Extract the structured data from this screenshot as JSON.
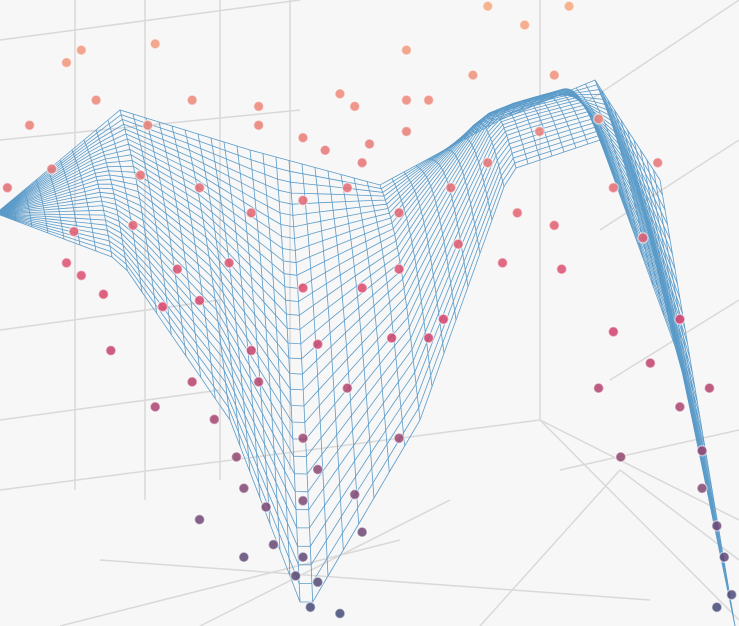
{
  "chart_data": {
    "type": "scatter",
    "xlim": [
      0,
      100
    ],
    "ylim": [
      0,
      100
    ],
    "colorscale": [
      "#3d4a78",
      "#d8406a",
      "#f6a97e"
    ],
    "x": [
      66,
      71,
      77,
      11,
      21,
      55,
      64,
      75,
      26,
      35,
      46,
      48,
      55,
      58,
      35,
      41,
      50,
      55,
      44,
      49,
      75,
      70,
      68,
      76,
      9,
      11,
      14,
      22,
      60,
      58,
      92,
      96,
      21,
      15,
      27,
      89,
      4,
      9,
      1,
      7,
      10,
      19,
      27,
      34,
      41,
      47,
      54,
      61,
      66,
      73,
      81,
      83,
      87,
      24,
      31,
      41,
      49,
      54,
      62,
      34,
      43,
      53,
      26,
      35,
      47,
      29,
      41,
      54,
      88,
      92,
      84,
      95,
      32,
      43,
      33,
      41,
      48,
      36,
      27,
      49,
      37,
      41,
      33,
      40,
      43,
      42,
      46,
      97,
      98,
      97,
      99,
      95,
      81,
      18,
      13,
      20,
      83
    ],
    "y": [
      99,
      96,
      99,
      92,
      93,
      92,
      88,
      88,
      84,
      83,
      85,
      83,
      84,
      84,
      80,
      78,
      77,
      79,
      76,
      74,
      64,
      66,
      58,
      57,
      58,
      56,
      53,
      51,
      49,
      46,
      49,
      38,
      35,
      44,
      52,
      74,
      80,
      90,
      70,
      73,
      63,
      72,
      70,
      66,
      68,
      70,
      66,
      70,
      74,
      79,
      81,
      70,
      62,
      57,
      58,
      54,
      54,
      57,
      61,
      44,
      45,
      46,
      39,
      39,
      38,
      33,
      30,
      30,
      42,
      35,
      27,
      28,
      27,
      25,
      22,
      20,
      21,
      19,
      17,
      15,
      13,
      11,
      11,
      8,
      7,
      3,
      2,
      16,
      11,
      3,
      5,
      22,
      38,
      64,
      84,
      80,
      47
    ]
  }
}
